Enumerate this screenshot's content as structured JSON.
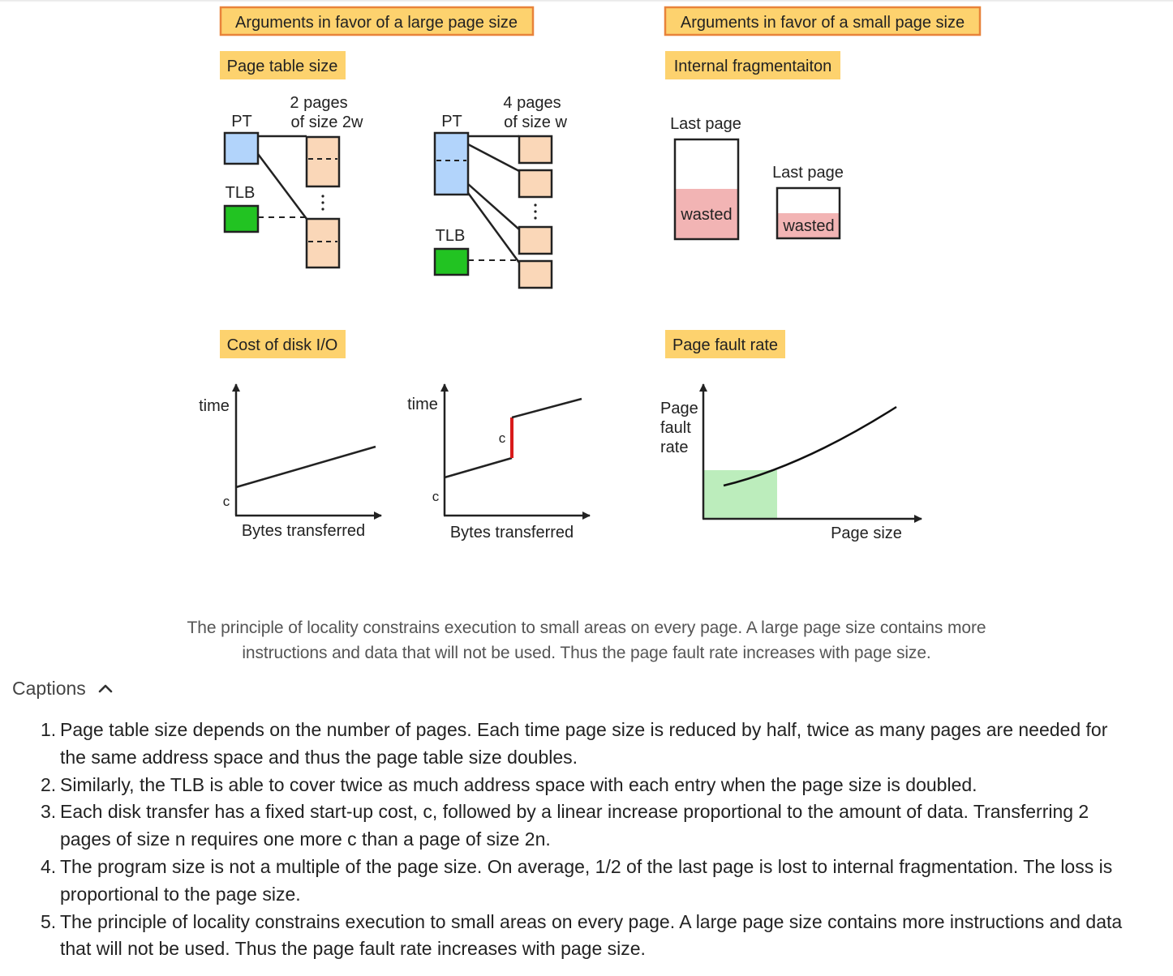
{
  "headers": {
    "large": "Arguments in favor of a large page size",
    "small": "Arguments in favor of a small page size"
  },
  "subheaders": {
    "page_table_size": "Page table size",
    "internal_frag": "Internal fragmentaiton",
    "disk_io": "Cost of disk I/O",
    "page_fault_rate": "Page fault rate"
  },
  "page_table_diagram": {
    "left": {
      "pt": "PT",
      "tlb": "TLB",
      "pages_line1": "2 pages",
      "pages_line2": "of size 2w",
      "dots": "⋮"
    },
    "right": {
      "pt": "PT",
      "tlb": "TLB",
      "pages_line1": "4 pages",
      "pages_line2": "of size w",
      "dots": "⋮"
    }
  },
  "fragmentation": {
    "last_page_large": "Last page",
    "last_page_small": "Last page",
    "wasted_large": "wasted",
    "wasted_small": "wasted"
  },
  "disk_io_charts": {
    "left": {
      "ylabel": "time",
      "xlabel": "Bytes transferred",
      "c_label": "c"
    },
    "right": {
      "ylabel": "time",
      "xlabel": "Bytes transferred",
      "c_label_low": "c",
      "c_label_jump": "c"
    }
  },
  "fault_chart": {
    "ylabel_1": "Page",
    "ylabel_2": "fault",
    "ylabel_3": "rate",
    "xlabel": "Page size"
  },
  "colors": {
    "header_fill": "#fdd26e",
    "header_border": "#e8833a",
    "pt_blue": "#b2d4fb",
    "tlb_green": "#22c322",
    "page_peach": "#fad7b8",
    "wasted_pink": "#f2b4b4",
    "fault_green": "#bcedbc",
    "jump_red": "#d81b1b"
  },
  "figure_caption": {
    "line1": "The principle of locality constrains execution to small areas on every page. A large page size contains more",
    "line2": "instructions and data that will not be used. Thus the page fault rate increases with page size."
  },
  "captions": {
    "toggle_label": "Captions",
    "toggle_icon": "chevron-up-icon",
    "items": [
      {
        "num": "1.",
        "lines": [
          "Page table size depends on the number of pages. Each time page size is reduced by half, twice as many pages are needed for",
          "the same address space and thus the page table size doubles."
        ]
      },
      {
        "num": "2.",
        "lines": [
          "Similarly, the TLB is able to cover twice as much address space with each entry when the page size is doubled."
        ]
      },
      {
        "num": "3.",
        "lines": [
          "Each disk transfer has a fixed start-up cost, c, followed by a linear increase proportional to the amount of data. Transferring 2",
          "pages of size n requires one more c than a page of size 2n."
        ]
      },
      {
        "num": "4.",
        "lines": [
          "The program size is not a multiple of the page size. On average, 1/2 of the last page is lost to internal fragmentation. The loss is",
          "proportional to the page size."
        ]
      },
      {
        "num": "5.",
        "lines": [
          "The principle of locality constrains execution to small areas on every page. A large page size contains more instructions and data",
          "that will not be used. Thus the page fault rate increases with page size."
        ]
      }
    ]
  }
}
